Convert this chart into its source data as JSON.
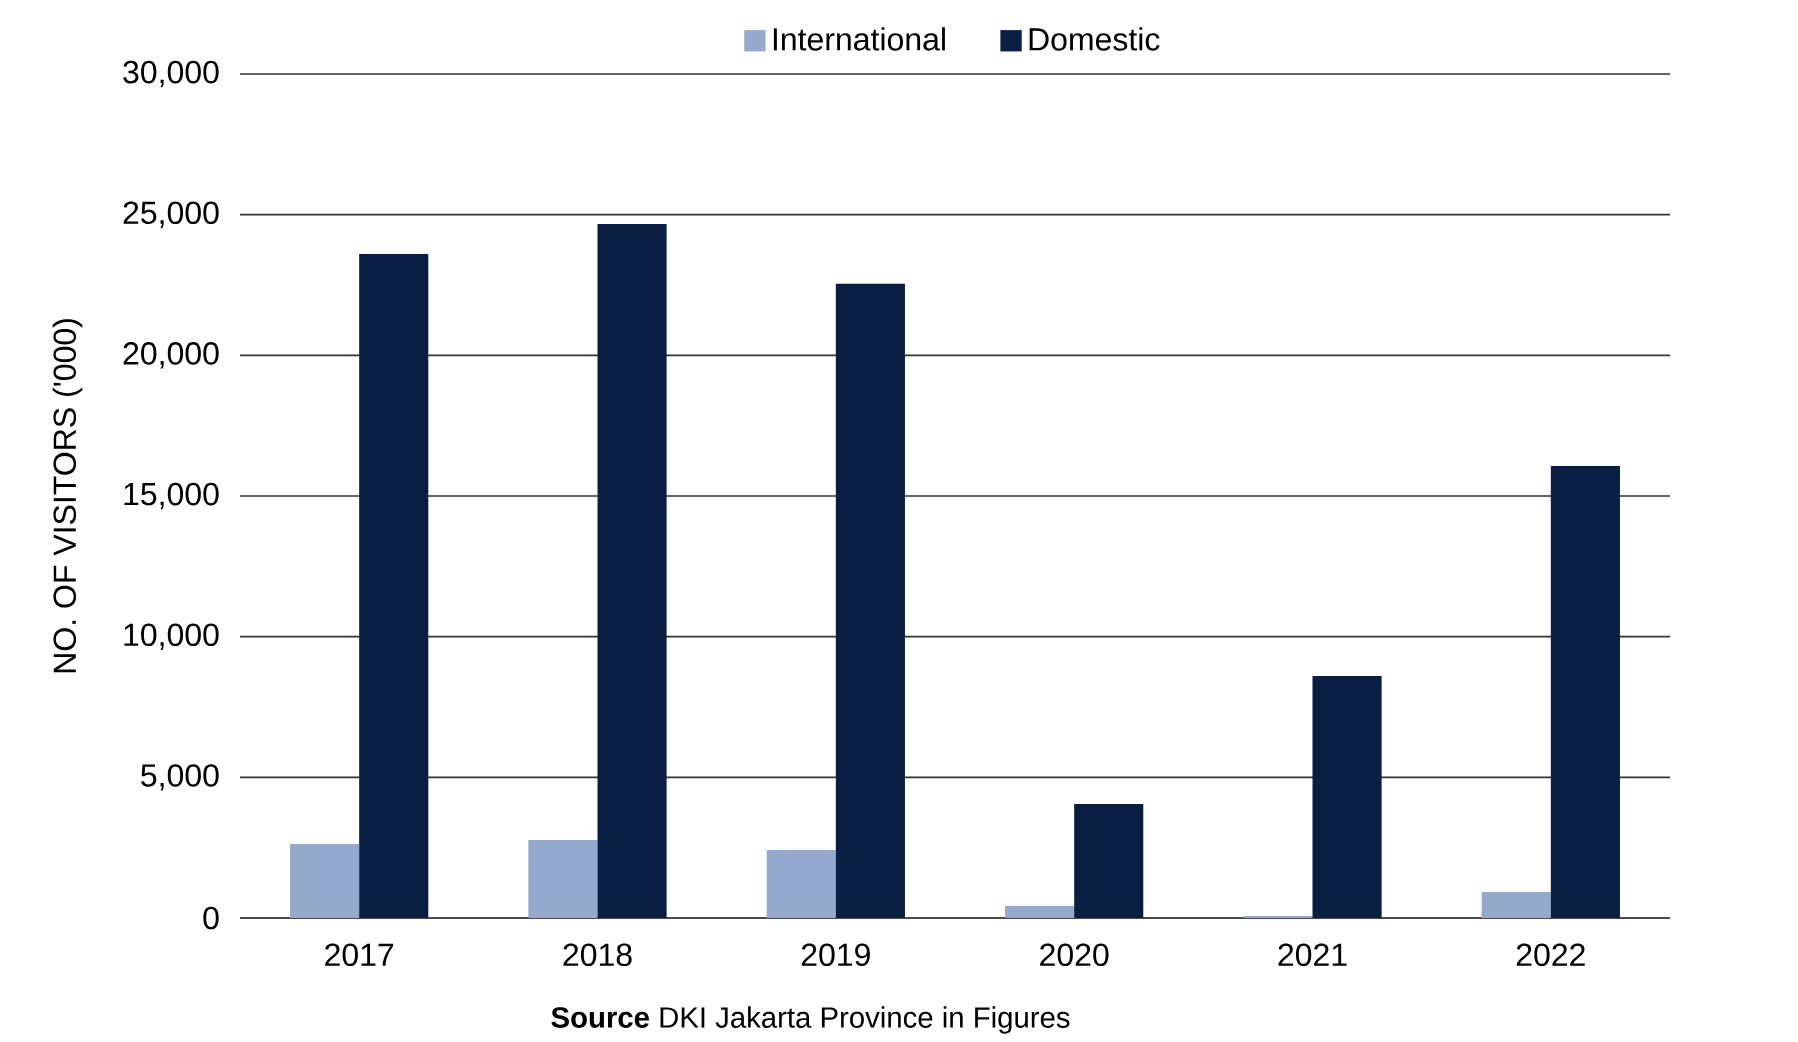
{
  "chart_data": {
    "type": "bar",
    "ylabel": "NO. OF VISITORS ('000)",
    "categories": [
      "2017",
      "2018",
      "2019",
      "2020",
      "2021",
      "2022"
    ],
    "series": [
      {
        "name": "International",
        "color": "#94a9cc",
        "values": [
          2630,
          2770,
          2420,
          430,
          70,
          920
        ]
      },
      {
        "name": "Domestic",
        "color": "#0a1e42",
        "values": [
          23600,
          24670,
          22540,
          4050,
          8600,
          16070
        ]
      }
    ],
    "ylim": [
      0,
      30000
    ],
    "yticks": [
      0,
      {
        "value": 5000,
        "label": "5,000"
      },
      {
        "value": 10000,
        "label": "10,000"
      },
      {
        "value": 15000,
        "label": "15,000"
      },
      {
        "value": 20000,
        "label": "20,000"
      },
      {
        "value": 25000,
        "label": "25,000"
      },
      {
        "value": 30000,
        "label": "30,000"
      }
    ],
    "grid": "y",
    "legend": "top",
    "annotations": [
      "**Source** DKI Jakarta Province in Figures"
    ]
  }
}
